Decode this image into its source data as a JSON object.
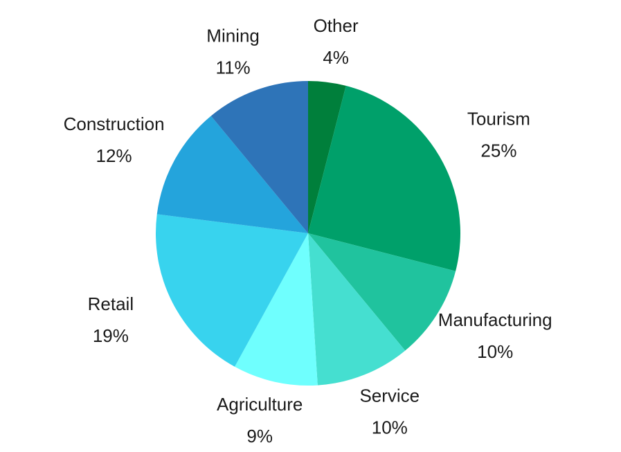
{
  "chart_data": {
    "type": "pie",
    "categories": [
      "Other",
      "Tourism",
      "Manufacturing",
      "Service",
      "Agriculture",
      "Retail",
      "Construction",
      "Mining"
    ],
    "values": [
      4,
      25,
      10,
      10,
      9,
      19,
      12,
      11
    ],
    "value_labels": [
      "4%",
      "25%",
      "10%",
      "10%",
      "9%",
      "19%",
      "12%",
      "11%"
    ],
    "colors": [
      "#007f3b",
      "#00a06a",
      "#20c39e",
      "#45dfd0",
      "#6ffffe",
      "#38d3ee",
      "#24a4dc",
      "#2e74b8"
    ]
  }
}
